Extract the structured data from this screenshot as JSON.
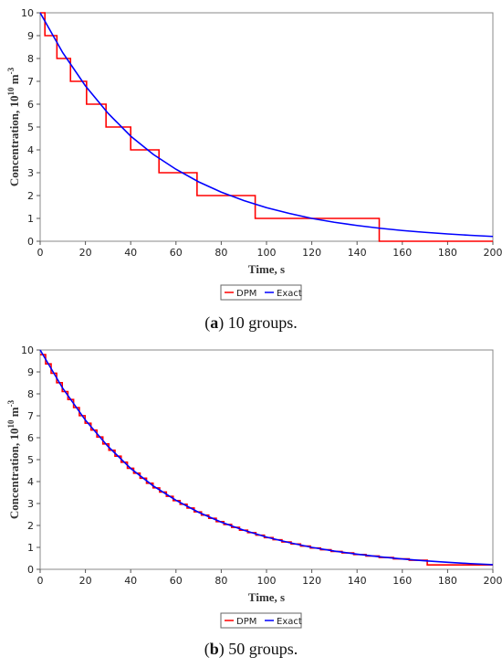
{
  "chart_data": [
    {
      "type": "line",
      "panel": "a",
      "xlabel": "Time, s",
      "ylabel_main": "Concentration, 10",
      "ylabel_exp": "10",
      "ylabel_unit": " m",
      "ylabel_unit_exp": "-3",
      "xlim": [
        0,
        200
      ],
      "ylim": [
        0,
        10
      ],
      "xticks": [
        0,
        20,
        40,
        60,
        80,
        100,
        120,
        140,
        160,
        180,
        200
      ],
      "yticks": [
        0,
        1,
        2,
        3,
        4,
        5,
        6,
        7,
        8,
        9,
        10
      ],
      "legend": [
        "DPM",
        "Exact"
      ],
      "legend_position": "bottom-center",
      "grid": false,
      "series": [
        {
          "name": "DPM",
          "color": "#ff0000",
          "style": "step",
          "steps": [
            {
              "x0": 0,
              "x1": 2.1,
              "y": 10
            },
            {
              "x0": 2.1,
              "x1": 7.4,
              "y": 9
            },
            {
              "x0": 7.4,
              "x1": 13.4,
              "y": 8
            },
            {
              "x0": 13.4,
              "x1": 20.5,
              "y": 7
            },
            {
              "x0": 20.5,
              "x1": 29.1,
              "y": 6
            },
            {
              "x0": 29.1,
              "x1": 40,
              "y": 5
            },
            {
              "x0": 40,
              "x1": 52.5,
              "y": 4
            },
            {
              "x0": 52.5,
              "x1": 69.3,
              "y": 3
            },
            {
              "x0": 69.3,
              "x1": 95,
              "y": 2
            },
            {
              "x0": 95,
              "x1": 149.8,
              "y": 1
            },
            {
              "x0": 149.8,
              "x1": 200,
              "y": 0
            }
          ]
        },
        {
          "name": "Exact",
          "color": "#0000ff",
          "style": "curve",
          "x": [
            0,
            10,
            20,
            30,
            40,
            50,
            60,
            70,
            80,
            90,
            100,
            110,
            120,
            130,
            140,
            150,
            160,
            170,
            180,
            190,
            200
          ],
          "y": [
            10,
            8.25,
            6.8,
            5.6,
            4.6,
            3.8,
            3.15,
            2.6,
            2.15,
            1.78,
            1.47,
            1.22,
            1.0,
            0.83,
            0.69,
            0.57,
            0.47,
            0.39,
            0.32,
            0.26,
            0.21
          ]
        }
      ]
    },
    {
      "type": "line",
      "panel": "b",
      "xlabel": "Time, s",
      "ylabel_main": "Concentration, 10",
      "ylabel_exp": "10",
      "ylabel_unit": " m",
      "ylabel_unit_exp": "-3",
      "xlim": [
        0,
        200
      ],
      "ylim": [
        0,
        10
      ],
      "xticks": [
        0,
        20,
        40,
        60,
        80,
        100,
        120,
        140,
        160,
        180,
        200
      ],
      "yticks": [
        0,
        1,
        2,
        3,
        4,
        5,
        6,
        7,
        8,
        9,
        10
      ],
      "legend": [
        "DPM",
        "Exact"
      ],
      "legend_position": "bottom-center",
      "grid": false,
      "series": [
        {
          "name": "DPM",
          "color": "#ff0000",
          "style": "step",
          "groups": 50,
          "x": [
            0,
            10,
            20,
            30,
            40,
            50,
            60,
            70,
            80,
            90,
            100,
            110,
            120,
            130,
            140,
            150,
            160,
            170,
            175,
            180,
            200
          ],
          "y": [
            10,
            8.25,
            6.8,
            5.6,
            4.6,
            3.8,
            3.15,
            2.6,
            2.15,
            1.78,
            1.47,
            1.22,
            1.0,
            0.83,
            0.69,
            0.57,
            0.47,
            0.39,
            0.2,
            0.2,
            0.2
          ]
        },
        {
          "name": "Exact",
          "color": "#0000ff",
          "style": "curve",
          "x": [
            0,
            10,
            20,
            30,
            40,
            50,
            60,
            70,
            80,
            90,
            100,
            110,
            120,
            130,
            140,
            150,
            160,
            170,
            180,
            190,
            200
          ],
          "y": [
            10,
            8.25,
            6.8,
            5.6,
            4.6,
            3.8,
            3.15,
            2.6,
            2.15,
            1.78,
            1.47,
            1.22,
            1.0,
            0.83,
            0.69,
            0.57,
            0.47,
            0.39,
            0.32,
            0.26,
            0.21
          ]
        }
      ]
    }
  ],
  "captions": [
    {
      "label": "a",
      "text": " 10 groups."
    },
    {
      "label": "b",
      "text": " 50 groups."
    }
  ]
}
